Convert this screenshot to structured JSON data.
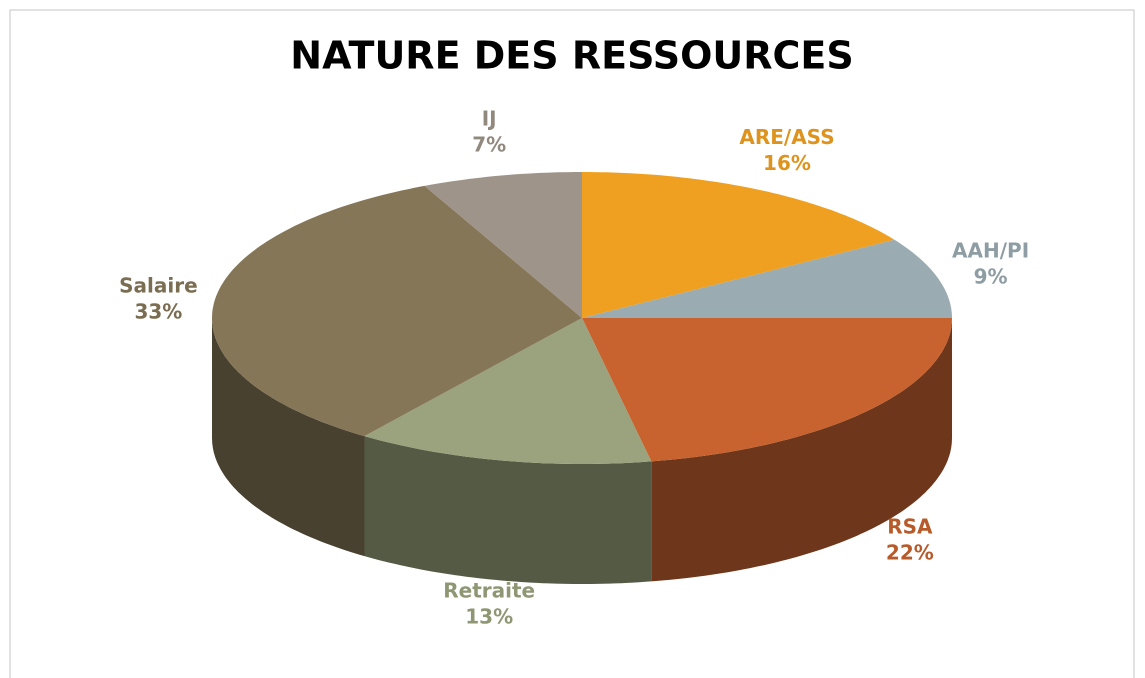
{
  "chart_data": {
    "type": "pie3d",
    "title": "NATURE DES RESSOURCES",
    "categories": [
      "ARE/ASS",
      "AAH/PI",
      "RSA",
      "Retraite",
      "Salaire",
      "IJ"
    ],
    "values": [
      16,
      9,
      22,
      13,
      33,
      7
    ],
    "value_labels": [
      "16%",
      "9%",
      "22%",
      "13%",
      "33%",
      "7%"
    ],
    "colors": [
      "#f0a020",
      "#9aabb1",
      "#c8632f",
      "#9aa37d",
      "#857658",
      "#9e9489"
    ]
  }
}
